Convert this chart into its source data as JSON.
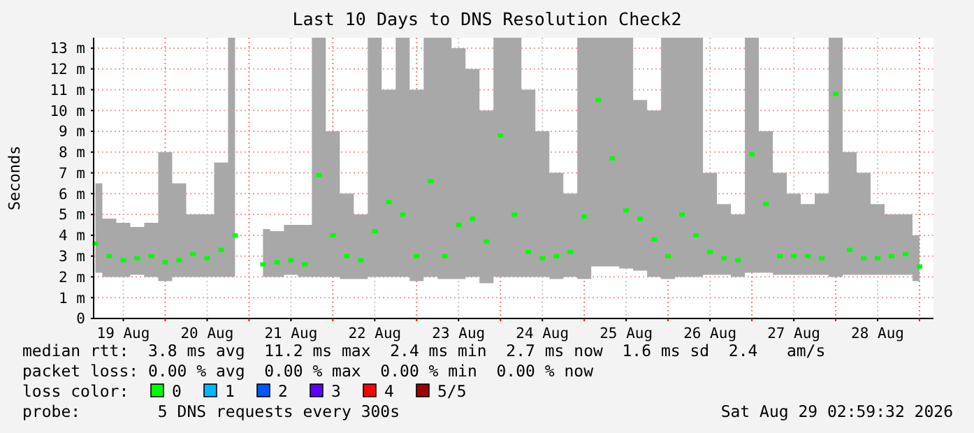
{
  "chart_data": {
    "type": "scatter",
    "title": "Last 10 Days to DNS Resolution Check2",
    "ylabel": "Seconds",
    "x": [
      "2026-08-19T04:00",
      "2026-08-19T08:00",
      "2026-08-19T12:00",
      "2026-08-19T16:00",
      "2026-08-19T20:00",
      "2026-08-20T00:00",
      "2026-08-20T04:00",
      "2026-08-20T08:00",
      "2026-08-20T12:00",
      "2026-08-20T16:00",
      "2026-08-20T20:00",
      "2026-08-21T00:00",
      "2026-08-21T04:00",
      "2026-08-21T08:00",
      "2026-08-21T12:00",
      "2026-08-21T16:00",
      "2026-08-21T20:00",
      "2026-08-22T00:00",
      "2026-08-22T04:00",
      "2026-08-22T08:00",
      "2026-08-22T12:00",
      "2026-08-22T16:00",
      "2026-08-22T20:00",
      "2026-08-23T00:00",
      "2026-08-23T04:00",
      "2026-08-23T08:00",
      "2026-08-23T12:00",
      "2026-08-23T16:00",
      "2026-08-23T20:00",
      "2026-08-24T00:00",
      "2026-08-24T04:00",
      "2026-08-24T08:00",
      "2026-08-24T12:00",
      "2026-08-24T16:00",
      "2026-08-24T20:00",
      "2026-08-25T00:00",
      "2026-08-25T04:00",
      "2026-08-25T08:00",
      "2026-08-25T12:00",
      "2026-08-25T16:00",
      "2026-08-25T20:00",
      "2026-08-26T00:00",
      "2026-08-26T04:00",
      "2026-08-26T08:00",
      "2026-08-26T12:00",
      "2026-08-26T16:00",
      "2026-08-26T20:00",
      "2026-08-27T00:00",
      "2026-08-27T04:00",
      "2026-08-27T08:00",
      "2026-08-27T12:00",
      "2026-08-27T16:00",
      "2026-08-27T20:00",
      "2026-08-28T00:00",
      "2026-08-28T04:00",
      "2026-08-28T08:00",
      "2026-08-28T12:00",
      "2026-08-28T16:00",
      "2026-08-28T20:00",
      "2026-08-29T00:00"
    ],
    "series": [
      {
        "name": "0",
        "color": "#00ff00",
        "values": [
          3.6,
          3.0,
          2.8,
          2.9,
          3.0,
          2.7,
          2.8,
          3.1,
          2.9,
          3.3,
          4.0,
          null,
          2.6,
          2.7,
          2.8,
          2.6,
          6.9,
          4.0,
          3.0,
          2.8,
          4.2,
          5.6,
          5.0,
          3.0,
          6.6,
          3.0,
          4.5,
          4.8,
          3.7,
          8.8,
          5.0,
          3.2,
          2.9,
          3.0,
          3.2,
          4.9,
          10.5,
          7.7,
          5.2,
          4.8,
          3.8,
          3.0,
          5.0,
          4.0,
          3.2,
          2.9,
          2.8,
          7.9,
          5.5,
          3.0,
          3.0,
          3.0,
          2.9,
          10.8,
          3.3,
          2.9,
          2.9,
          3.0,
          3.1,
          2.5
        ],
        "lower": [
          2.2,
          2.0,
          2.0,
          2.1,
          2.0,
          1.8,
          2.0,
          2.0,
          2.0,
          2.0,
          2.0,
          null,
          2.0,
          2.0,
          2.1,
          2.0,
          2.0,
          2.0,
          1.9,
          1.9,
          2.0,
          2.0,
          2.0,
          1.8,
          2.0,
          1.9,
          1.9,
          2.0,
          1.7,
          2.0,
          2.0,
          2.0,
          2.0,
          1.9,
          2.0,
          1.9,
          2.5,
          2.5,
          2.4,
          2.3,
          2.0,
          1.9,
          2.0,
          2.0,
          2.1,
          2.1,
          2.0,
          2.2,
          2.2,
          2.1,
          2.1,
          2.1,
          2.1,
          2.0,
          2.1,
          2.1,
          2.1,
          2.1,
          2.1,
          1.8
        ],
        "upper": [
          6.5,
          4.8,
          4.6,
          4.4,
          4.6,
          8.0,
          6.5,
          5.0,
          5.0,
          7.5,
          13.5,
          null,
          4.3,
          4.2,
          4.5,
          4.5,
          13.5,
          9.0,
          6.0,
          5.0,
          13.5,
          11.0,
          13.5,
          11.0,
          13.5,
          13.5,
          13.0,
          12.0,
          10.0,
          13.5,
          13.5,
          11.0,
          9.0,
          7.0,
          6.0,
          13.5,
          13.5,
          13.5,
          13.5,
          10.5,
          10.0,
          13.5,
          13.5,
          13.5,
          7.0,
          5.5,
          5.0,
          13.5,
          9.0,
          7.0,
          6.0,
          5.5,
          6.0,
          13.5,
          8.0,
          7.0,
          5.5,
          5.0,
          5.0,
          4.0
        ]
      },
      {
        "name": "1",
        "color": "#00b8ff",
        "values": [
          null,
          null,
          null,
          null,
          null,
          null,
          null,
          null,
          null,
          null,
          null,
          null,
          null,
          null,
          null,
          null,
          null,
          null,
          null,
          null,
          null,
          null,
          null,
          null,
          null,
          null,
          null,
          null,
          null,
          null,
          null,
          null,
          null,
          null,
          null,
          null,
          null,
          null,
          null,
          null,
          null,
          null,
          null,
          null,
          null,
          null,
          null,
          null,
          null,
          null,
          null,
          null,
          null,
          null,
          null,
          null,
          null,
          null,
          null,
          null
        ]
      },
      {
        "name": "2",
        "color": "#0059ff",
        "values": [
          null,
          null,
          null,
          null,
          null,
          null,
          null,
          null,
          null,
          null,
          null,
          null,
          null,
          null,
          null,
          null,
          null,
          null,
          null,
          null,
          null,
          null,
          null,
          null,
          null,
          null,
          null,
          null,
          null,
          null,
          null,
          null,
          null,
          null,
          null,
          null,
          null,
          null,
          null,
          null,
          null,
          null,
          null,
          null,
          null,
          null,
          null,
          null,
          null,
          null,
          null,
          null,
          null,
          null,
          null,
          null,
          null,
          null,
          null,
          null
        ]
      },
      {
        "name": "3",
        "color": "#5e00ff",
        "values": [
          null,
          null,
          null,
          null,
          null,
          null,
          null,
          null,
          null,
          null,
          null,
          null,
          null,
          null,
          null,
          null,
          null,
          null,
          null,
          null,
          null,
          null,
          null,
          null,
          null,
          null,
          null,
          null,
          null,
          null,
          null,
          null,
          null,
          null,
          null,
          null,
          null,
          null,
          null,
          null,
          null,
          null,
          null,
          null,
          null,
          null,
          null,
          null,
          null,
          null,
          null,
          null,
          null,
          null,
          null,
          null,
          null,
          null,
          null,
          null
        ]
      },
      {
        "name": "4",
        "color": "#ff0000",
        "values": [
          null,
          null,
          null,
          null,
          null,
          null,
          null,
          null,
          null,
          null,
          null,
          null,
          null,
          null,
          null,
          null,
          null,
          null,
          null,
          null,
          null,
          null,
          null,
          null,
          null,
          null,
          null,
          null,
          null,
          null,
          null,
          null,
          null,
          null,
          null,
          null,
          null,
          null,
          null,
          null,
          null,
          null,
          null,
          null,
          null,
          null,
          null,
          null,
          null,
          null,
          null,
          null,
          null,
          null,
          null,
          null,
          null,
          null,
          null,
          null
        ]
      },
      {
        "name": "5/5",
        "color": "#a00000",
        "values": [
          null,
          null,
          null,
          null,
          null,
          null,
          null,
          null,
          null,
          null,
          null,
          null,
          null,
          null,
          null,
          null,
          null,
          null,
          null,
          null,
          null,
          null,
          null,
          null,
          null,
          null,
          null,
          null,
          null,
          null,
          null,
          null,
          null,
          null,
          null,
          null,
          null,
          null,
          null,
          null,
          null,
          null,
          null,
          null,
          null,
          null,
          null,
          null,
          null,
          null,
          null,
          null,
          null,
          null,
          null,
          null,
          null,
          null,
          null,
          null
        ]
      }
    ],
    "marker": "square",
    "legend": "bottom",
    "legend_title": "loss color:",
    "xlim": [
      "2026-08-19T03:30",
      "2026-08-29T04:00"
    ],
    "xticks": [
      {
        "value": "2026-08-19T12:00",
        "label": "19 Aug"
      },
      {
        "value": "2026-08-20T00:00",
        "label": null
      },
      {
        "value": "2026-08-20T12:00",
        "label": "20 Aug"
      },
      {
        "value": "2026-08-21T00:00",
        "label": null
      },
      {
        "value": "2026-08-21T12:00",
        "label": "21 Aug"
      },
      {
        "value": "2026-08-22T00:00",
        "label": null
      },
      {
        "value": "2026-08-22T12:00",
        "label": "22 Aug"
      },
      {
        "value": "2026-08-23T00:00",
        "label": null
      },
      {
        "value": "2026-08-23T12:00",
        "label": "23 Aug"
      },
      {
        "value": "2026-08-24T00:00",
        "label": null
      },
      {
        "value": "2026-08-24T12:00",
        "label": "24 Aug"
      },
      {
        "value": "2026-08-25T00:00",
        "label": null
      },
      {
        "value": "2026-08-25T12:00",
        "label": "25 Aug"
      },
      {
        "value": "2026-08-26T00:00",
        "label": null
      },
      {
        "value": "2026-08-26T12:00",
        "label": "26 Aug"
      },
      {
        "value": "2026-08-27T00:00",
        "label": null
      },
      {
        "value": "2026-08-27T12:00",
        "label": "27 Aug"
      },
      {
        "value": "2026-08-28T00:00",
        "label": null
      },
      {
        "value": "2026-08-28T12:00",
        "label": "28 Aug"
      },
      {
        "value": "2026-08-29T00:00",
        "label": null
      }
    ],
    "ylim": [
      0,
      13.5
    ],
    "yticks": [
      0,
      {
        "value": 1,
        "label": "1 m"
      },
      {
        "value": 2,
        "label": "2 m"
      },
      {
        "value": 3,
        "label": "3 m"
      },
      {
        "value": 4,
        "label": "4 m"
      },
      {
        "value": 5,
        "label": "5 m"
      },
      {
        "value": 6,
        "label": "6 m"
      },
      {
        "value": 7,
        "label": "7 m"
      },
      {
        "value": 8,
        "label": "8 m"
      },
      {
        "value": 9,
        "label": "9 m"
      },
      {
        "value": 10,
        "label": "10 m"
      },
      {
        "value": 11,
        "label": "11 m"
      },
      {
        "value": 12,
        "label": "12 m"
      },
      {
        "value": 13,
        "label": "13 m"
      }
    ],
    "grid": true,
    "annotations": [
      "median rtt:  3.8 ms avg  11.2 ms max  2.4 ms min  2.7 ms now  1.6 ms sd  2.4   am/s",
      "packet loss: 0.00 % avg  0.00 % max  0.00 % min  0.00 % now",
      "probe:        5 DNS requests every 300s",
      "Sat Aug 29 02:59:32 2026"
    ]
  }
}
